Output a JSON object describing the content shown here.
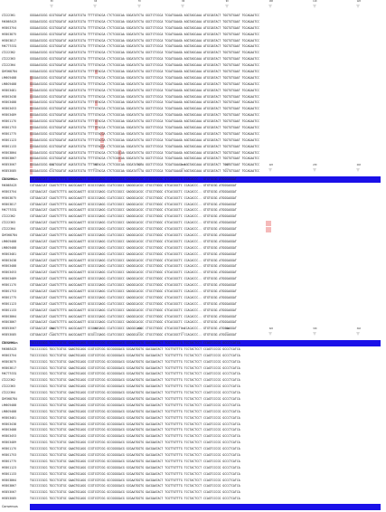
{
  "figure": {
    "consensus_label": "Consensus",
    "blocks": [
      {
        "ticks": [
          "50",
          "60",
          "70",
          "80",
          "90",
          "100",
          "110",
          "120"
        ],
        "labels": [
          "LT222361",
          "MK665425",
          "HE803704",
          "HE803875",
          "HE803817",
          "MK775331",
          "LT222362",
          "LT222363",
          "LT222364",
          "DM368784",
          "LM605488",
          "LM805488",
          "HE803481",
          "HE803438",
          "HE803488",
          "HE803453",
          "HE803489",
          "HE801170",
          "HE801753",
          "HE801775",
          "HE801123",
          "HE801133",
          "HE803864",
          "HE803867",
          "HE853067",
          "HE853085"
        ],
        "seqs": [
          "GGGAACGCGG GCGTGGATAT AGATATCGTA TTTTGTACGA CTCTCGGCAA GGGATATCTA GGCTCTCGCA TCGATGAAGA AGGTAGCAAA ATGCGATACT TGGTGTGAAT TGCAGAATCC",
          "GGGAACGCGG GCGTGGATAT AGATATCGTA TTTTGTACGA CTCTCGGCAA GGGATATCTA GGCTCTCGCA TCGATGAAGA AGGTAGCAAA ATGCGATACT TGGTGTGAAT TGCAGAATCC",
          "GGGAACGCGG GCGTGGATAT AGATATCGTA TTTTGTACGA CTCTCGGCAA GGGATATCTA GGCTCTCGCA TCGATGAAGA AGGTAGCAAA ATGCGATACT TGGTGTGAAT TGCAGAATCC",
          "GGGAACGCGG GCGTGGATAT AGATATCGTA TTTTGTACGA CTCTCGGCAA GGGATATCTA GGCTCTCGCA TCGATGAAGA AGGTAGCAAA ATGCGATACT TGGTGTGAAT TGCAGAATCC",
          "GGGAACGCGG GCGTGGATAT AGATATCGTA TTTTGTACGA CTCTCGGCAA GGGATATCTA GGCTCTCGCA TCGATGAAGA AGGTAGCAAA ATGCGATACT TGGTGTGAAT TGCAGAATCC",
          "GGGAACGCGG GCGTGGATAT AGATATCGTA TTTTGTACGA CTCTCGGCAA GGGATATCTA GGCTCTCGCA TCGATGAAGA AGGTAGCAAA ATGCGATACT TGGTGTGAAT TGCAGAATCC",
          "GGGAACGCGG GCGTGGATAT AGATATCGTA TTTTGTACGA CTCTCGGCAA GGGATATCTA GGCTCTCGCA TCGATGAAGA AGGTAGCAAA ATGCGATACT TGGTGTGAAT TGCAGAATCC",
          "GGGAACGCGG GCGTGGATAT AGATATCGTA TTTTGTACGA CTCTCGGCAA GGGATATCTA GGCTCTCGCA TCGATGAAGA AGGTAGCAAA ATGCGATACT TGGTGTGAAT TGCAGAATCC",
          "GGGAACGCGG GCGTGGATAT AGATATCGTA TTTTGTACGA CTCTCGGCAA GGGATATCTA GGCTCTCGCA TCGATGAAGA AGGTAGCAAA ATGCGATACT TGGTGTGAAT TGCAGAATCC",
          "GGGAACGCGG GCGTGGATAT AGATATCGTA TTTTGTACGA CTCTCGGCAA GGGATATCTA GGCTCTCGCA TCGATGAAGA AGGTAGCAAA ATGCGATACT TGGTGTGAAT TGCAGAATCC",
          "GGGAACGCGG GCGTGGATAT AGATATCGTA TTTTGTACGA CTCTCGGCAA GGGATATCTA GGCTCTCGCA TCGATGAAGA AGGTAGCAAA ATGCGATACT TGGTGTGAAT TGCAGAATCC",
          "GGGAACGCGG GCGTGGATAT AGATATCGTA TTTTGTACGA CTCTCGGCAA GGGATATCTA GGCTCTCGCA TCGATGAAGA AGGTAGCAAA ATGCGATACT TGGTGTGAAT TGCAGAATCC",
          "GGGAACGCGG GCGTGGATAT AGATATCGTA TTTTGTACGA CTCTCGGCAA GGGATATCTA GGCTCTCGCA TCGATGAAGA AGGTAGCAAA ATGCGATACT TGGTGTGAAT TGCAGAATCC",
          "GGGAACGCGG GCGTGGATAT AGATATCGTA TTTTGTACGA CTCTCGGCAA GGGATATCTA GGCTCTCGCA TCGATGAAGA AGGTAGCAAA ATGCGATACT TGGTGTGAAT TGCAGAATCC",
          "GGGAACGCGG GCGTGGATAT AGATATCGTA TTTTGTACGA CTCTCGGCAA GGGATATCTA GGCTCTCGCA TCGATGAAGA AGGTAGCAAA ATGCGATACT TGGTGTGAAT TGCAGAATCC",
          "GGGAACGCGG GCGTGGATAT AGATATCGTA TTTTGTACGA CTCTCGGCAA GGGATATCTA GGCTCTCGCA TCGATGAAGA AGGTAGCAAA ATGCGATACT TGGTGTGAAT TGCAGAATCC",
          "GGGAACGCGG GCGTGGATAT AGATATCGTA TTTTGTACGA CTCTCGGCAA GGGATATCTA GGCTCTCGCA TCGATGAAGA AGGTAGCAAA ATGCGATACT TGGTGTGAAT TGCAGAATCC",
          "GGGAACGCGG GCGTGGATAT AGATATCGTA TTTTGTACGA CTCTCGGCAA GGGATATCTA GGCTCTCGCA TCGATGAAGA AGGTAGCAAA ATGCGATACT TGGTGTGAAT TGCAGAATCC",
          "GGGAACGCGG GCGTGGATAT AGATATCGTA TTTTGTACGA CTCTCGGCAA GGGATATCTA GGCTCTCGCA TCGATGAAGA AGGTAGCAAA ATGCGATACT TGGTGTGAAT TGCAGAATCC",
          "GGGAACGCGG GCGTGGATAT AGATATCGTA TTTTGTACGA CTCTCGGCAA GGGATATCTA GGCTCTCGCA TCGATGAAGA AGGTAGCAAA ATGCGATACT TGGTGTGAAT TGCAGAATCC",
          "GGGAACGCGG GCGTGGATAT AGATATCGTA TTTTGTACGA CTCTCGGCAA GGGATATCTA GGCTCTCGCA TCGATGAAGA AGGTAGCAAA ATGCGATACT TGGTGTGAAT TGCAGAATCC",
          "GGGAACGCGG GCGTGGATAT AGATATCGTA TTTTGTACGA CTCTCGGCAA GGGATATCTA GGCTCTCGCA TCGATGAAGA AGGTAGCAAA ATGCGATACT TGGTGTGAAT TGCAGAATCC",
          "GGGAACGCGG GCGTGGATAT AGATATCGTA TTTTGTACGA CTCTCGGCAA GGGATATCTA GGCTCTCGCA TCGATGAAGA AGGTAGCAAA ATGCGATACT TGGTGTGAAT TGCAGAATCC",
          "GGGAACGCGG GCGTGGATAT AGATATCGTA TTTTGTACGA CTCTCGGCAA GGGATATCTA GGCTCTCGCA TCGATGAAGA AGGTAGCAAA ATGCGATACT TGGTGTGAAT TGCAGAATCC",
          "GGGAACGCGG GCGTGGATAT AGATATCGTA TTTTGTACGA CTCTCGGCAA GGGATATCTA GGCTCTCGCA TCGATGAAGA AGGTAGCAAA ATGCGATACT TGGTGTGAAT TGCAGAATCC",
          "GGGAACGCGG GCGTGGATAT AGATATCGTA TTTTGTACGA CTCTCGGCAA GGGATATCTA GGCTCTCGCA TCGATGAAGA AGGTAGCAAA ATGCGATACT TGGTGTGAAT TGCAGAATCC"
        ],
        "mismatch_columns": [
          [],
          [],
          [],
          [],
          [],
          [],
          [],
          [],
          [],
          [
            22
          ],
          [
            0
          ],
          [
            0
          ],
          [
            0
          ],
          [
            0
          ],
          [
            0,
            22
          ],
          [
            0
          ],
          [
            0
          ],
          [
            0,
            22
          ],
          [
            0,
            22
          ],
          [
            0,
            24
          ],
          [
            0,
            24
          ],
          [
            0,
            24
          ],
          [
            0,
            30
          ],
          [
            0,
            30
          ],
          [
            0
          ],
          [
            0
          ]
        ]
      },
      {
        "ticks": [
          "170",
          "180",
          "190",
          "200",
          "210",
          "220",
          "230",
          "240"
        ],
        "labels": [
          "LT222361",
          "MK665425",
          "HE803704",
          "HE803875",
          "HE803817",
          "MK775331",
          "LT222362",
          "LT222363",
          "LT222364",
          "DM368784",
          "LM605488",
          "LM805488",
          "HE803481",
          "HE803438",
          "HE803488",
          "HE803453",
          "HE803489",
          "HE801170",
          "HE801753",
          "HE801775",
          "HE801123",
          "HE801133",
          "HE803864",
          "HE803867",
          "HE853067",
          "HE853085"
        ],
        "seqs": [
          "CGTGAACCAT CGAGTCTTTG AACGCAAGTT GCGCCCGAGG CCATCCGGCC GAGGGCACGC CTGCCTGGGC GTCACGGCTC CCACACCC-- GTGTGCGG ATGGGAGGAT",
          "CGTGAACCAT CGAGTCTTTG AACGCAAGTT GCGCCCGAGG CCATCCGGCC GAGGGCACGC CTGCCTGGGC GTCACGGCTC CCACACCC-- GTGTGCGG ATGGGAGGAT",
          "CGTGAACCAT CGAGTCTTTG AACGCAAGTT GCGCCCGAGG CCATCCGGCC GAGGGCACGC CTGCCTGGGC GTCACGGCTC CCACACCC-- GTGTGCGG ATGGGAGGAT",
          "CGTGAACCAT CGAGTCTTTG AACGCAAGTT GCGCCCGAGG CCATCCGGCC GAGGGCACGC CTGCCTGGGC GTCACGGCTC CCACACCC-- GTGTGCGG ATGGGAGGAT",
          "CGTGAACCAT CGAGTCTTTG AACGCAAGTT GCGCCCGAGG CCATCCGGCC GAGGGCACGC CTGCCTGGGC GTCACGGCTC CCACACCC-- GTGTGCGG ATGGGAGGAT",
          "CGTGAACCAT CGAGTCTTTG AACGCAAGTT GCGCCCGAGG CCATCCGGCC GAGGGCACGC CTGCCTGGGC GTCACGGCTC CCACACCC-- GTGTGCGG ATGGGAGGAT",
          "CGTGAACCAT CGAGTCTTTG AACGCAAGTT GCGCCCGAGG CCATCCGGCC GAGGGCACGC CTGCCTGGGC GTCACGGCTC CCACACCC-- GTGTGCGG ATGGGAGGAT",
          "CGTGAACCAT CGAGTCTTTG AACGCAAGTT GCGCCCGAGG CCATCCGGCC GAGGGCACGC CTGCCTGGGC GTCACGGCTC CCACACCC-- GTGTGCGG ATGGGAGGAT",
          "CGTGAACCAT CGAGTCTTTG AACGCAAGTT GCGCCCGAGG CCATCCGGCC GAGGGCACGC CTGCCTGGGC GTCACGGCTC CCACACCC-- GTGTGCGG ATGGGAGGAT",
          "CGTGAACCAT CGAGTCTTTG AACGCAAGTT GCGCCCGAGG CCATCCGGCC GAGGGCACGC CTGCCTGGGC GTCACGGCTC CCACACCC-- GTGTGCGG ATGGGAGGAT",
          "CGTGAACCAT CGAGTCTTTG AACGCAAGTT GCGCCCGAGG CCATCCGGCC GAGGGCACGC CTGCCTGGGC GTCACGGCTC CCACACCC-- GTGTGCGG ATGGGAGGAT",
          "CGTGAACCAT CGAGTCTTTG AACGCAAGTT GCGCCCGAGG CCATCCGGCC GAGGGCACGC CTGCCTGGGC GTCACGGCTC CCACACCC-- GTGTGCGG ATGGGAGGAT",
          "CGTGAACCAT CGAGTCTTTG AACGCAAGTT GCGCCCGAGG CCATCCGGCC GAGGGCACGC CTGCCTGGGC GTCACGGCTC CCACACCC-- GTGTGCGG ATGGGAGGAT",
          "CGTGAACCAT CGAGTCTTTG AACGCAAGTT GCGCCCGAGG CCATCCGGCC GAGGGCACGC CTGCCTGGGC GTCACGGCTC CCACACCC-- GTGTGCGG ATGGGAGGAT",
          "CGTGAACCAT CGAGTCTTTG AACGCAAGTT GCGCCCGAGG CCATCCGGCC GAGGGCACGC CTGCCTGGGC GTCACGGCTC CCACACCC-- GTGTGCGG ATGGGAGGAT",
          "CGTGAACCAT CGAGTCTTTG AACGCAAGTT GCGCCCGAGG CCATCCGGCC GAGGGCACGC CTGCCTGGGC GTCACGGCTC CCACACCC-- GTGTGCGG ATGGGAGGAT",
          "CGTGAACCAT CGAGTCTTTG AACGCAAGTT GCGCCCGAGG CCATCCGGCC GAGGGCACGC CTGCCTGGGC GTCACGGCTC CCACACCC-- GTGTGCGG ATGGGAGGAT",
          "CGTGAACCAT CGAGTCTTTG AACGCAAGTT GCGCCCGAGG CCATCCGGCC GAGGGCACGC CTGCCTGGGC GTCACGGCTC CCACACCC-- GTGTGCGG ATGGGAGGAT",
          "CGTGAACCAT CGAGTCTTTG AACGCAAGTT GCGCCCGAGG CCATCCGGCC GAGGGCACGC CTGCCTGGGC GTCACGGCTC CCACACCC-- GTGTGCGG ATGGGAGGAT",
          "CGTGAACCAT CGAGTCTTTG AACGCAAGTT GCGCCCGAGG CCATCCGGCC GAGGGCACGC CTGCCTGGGC GTCACGGCTC CCACACCC-- GTGTGCGG ATGGGAGGAT",
          "CGTGAACCAT CGAGTCTTTG AACGCAAGTT GCGCCCGAGG CCATCCGGCC GAGGGCACGC CTGCCTGGGC GTCACGGCTC CCACACCC-- GTGTGCGG ATGGGAGGAT",
          "CGTGAACCAT CGAGTCTTTG AACGCAAGTT GCGCCCGAGG CCATCCGGCC GAGGGCACGC CTGCCTGGGC GTCACGGCTC CCACACCC-- GTGTGCGG ATGGGAGGAT",
          "CGTGAACCAT CGAGTCTTTG AACGCAAGTT GCGCCCGAGG CCATCCGGCC GAGGGCACGC CTGCCTGGGC GTCACGGCTC CCACACCC-- GTGTGCGG ATGGGAGGAT",
          "CGTGAACCAT CGAGTCTTTG AACGCAAGTT GCGCCCGAGG CCATCCGGCC GAGGGCACGC CTGCCTGGGC GTCACGGCTC CCACACCC-- GTGTGCGG ATGGGAGGAT",
          "CGTGAACCAT CGAGTCTTTG AACGCAAGTT GCGCCCGAGG CCATCCGGCC GAGGGCACGC CTGCCTGGGC GTCACGGCTC CCACACCC-- GTGTGCGG ATGGGAGGAT",
          "CGTGAACCAT CGAGTCTTTG AACGCAAGTT GCGCCCGAGG CCATCCGGCC GAGGGCACGC CTGCCTGGGC GTCACGGCTC CCACACCC-- GTGTGCGG ATGGGAGGAT"
        ],
        "mismatch_columns": [
          [],
          [],
          [],
          [],
          [],
          [],
          [],
          [
            80,
            81
          ],
          [
            80,
            81
          ],
          [],
          [],
          [],
          [],
          [],
          [],
          [],
          [],
          [],
          [],
          [],
          [],
          [],
          [],
          [],
          [],
          []
        ]
      },
      {
        "ticks": [
          "270",
          "280",
          "290",
          "300",
          "310",
          "320",
          "330",
          "340"
        ],
        "labels": [
          "LT222361",
          "MK665425",
          "HE803704",
          "HE803875",
          "HE803817",
          "MK775331",
          "LT222362",
          "LT222363",
          "LT222364",
          "DM368784",
          "LM605488",
          "LM805488",
          "HE803481",
          "HE803438",
          "HE803488",
          "HE803453",
          "HE803489",
          "HE801170",
          "HE801753",
          "HE801775",
          "HE801123",
          "HE801133",
          "HE803864",
          "HE803867",
          "HE853067",
          "HE853085"
        ],
        "seqs": [
          "TGCCCCCGCG TGCCTCGTGC GAAGTGCAGG CCGTCGTCGG GCCGGGGACG GCGAATGGTG GACGAATACT TCGTTGTTTG TCCTACTCCT CCAGTCCCCG GCCCTCATCA",
          "TGCCCCCGCG TGCCTCGTGC GAAGTGCAGG CCGTCGTCGG GCCGGGGACG GCGAATGGTG GACGAATACT TCGTTGTTTG TCCTACTCCT CCAGTCCCCG GCCCTCATCA",
          "TGCCCCCGCG TGCCTCGTGC GAAGTGCAGG CCGTCGTCGG GCCGGGGACG GCGAATGGTG GACGAATACT TCGTTGTTTG TCCTACTCCT CCAGTCCCCG GCCCTCATCA",
          "TGCCCCCGCG TGCCTCGTGC GAAGTGCAGG CCGTCGTCGG GCCGGGGACG GCGAATGGTG GACGAATACT TCGTTGTTTG TCCTACTCCT CCAGTCCCCG GCCCTCATCA",
          "TGCCCCCGCG TGCCTCGTGC GAAGTGCAGG CCGTCGTCGG GCCGGGGACG GCGAATGGTG GACGAATACT TCGTTGTTTG TCCTACTCCT CCAGTCCCCG GCCCTCATCA",
          "TGCCCCCGCG TGCCTCGTGC GAAGTGCAGG CCGTCGTCGG GCCGGGGACG GCGAATGGTG GACGAATACT TCGTTGTTTG TCCTACTCCT CCAGTCCCCG GCCCTCATCA",
          "TGCCCCCGCG TGCCTCGTGC GAAGTGCAGG CCGTCGTCGG GCCGGGGACG GCGAATGGTG GACGAATACT TCGTTGTTTG TCCTACTCCT CCAGTCCCCG GCCCTCATCA",
          "TGCCCCCGCG TGCCTCGTGC GAAGTGCAGG CCGTCGTCGG GCCGGGGACG GCGAATGGTG GACGAATACT TCGTTGTTTG TCCTACTCCT CCAGTCCCCG GCCCTCATCA",
          "TGCCCCCGCG TGCCTCGTGC GAAGTGCAGG CCGTCGTCGG GCCGGGGACG GCGAATGGTG GACGAATACT TCGTTGTTTG TCCTACTCCT CCAGTCCCCG GCCCTCATCA",
          "TGCCCCCGCG TGCCTCGTGC GAAGTGCAGG CCGTCGTCGG GCCGGGGACG GCGAATGGTG GACGAATACT TCGTTGTTTG TCCTACTCCT CCAGTCCCCG GCCCTCATCA",
          "TGCCCCCGCG TGCCTCGTGC GAAGTGCAGG CCGTCGTCGG GCCGGGGACG GCGAATGGTG GACGAATACT TCGTTGTTTG TCCTACTCCT CCAGTCCCCG GCCCTCATCA",
          "TGCCCCCGCG TGCCTCGTGC GAAGTGCAGG CCGTCGTCGG GCCGGGGACG GCGAATGGTG GACGAATACT TCGTTGTTTG TCCTACTCCT CCAGTCCCCG GCCCTCATCA",
          "TGCCCCCGCG TGCCTCGTGC GAAGTGCAGG CCGTCGTCGG GCCGGGGACG GCGAATGGTG GACGAATACT TCGTTGTTTG TCCTACTCCT CCAGTCCCCG GCCCTCATCA",
          "TGCCCCCGCG TGCCTCGTGC GAAGTGCAGG CCGTCGTCGG GCCGGGGACG GCGAATGGTG GACGAATACT TCGTTGTTTG TCCTACTCCT CCAGTCCCCG GCCCTCATCA",
          "TGCCCCCGCG TGCCTCGTGC GAAGTGCAGG CCGTCGTCGG GCCGGGGACG GCGAATGGTG GACGAATACT TCGTTGTTTG TCCTACTCCT CCAGTCCCCG GCCCTCATCA",
          "TGCCCCCGCG TGCCTCGTGC GAAGTGCAGG CCGTCGTCGG GCCGGGGACG GCGAATGGTG GACGAATACT TCGTTGTTTG TCCTACTCCT CCAGTCCCCG GCCCTCATCA",
          "TGCCCCCGCG TGCCTCGTGC GAAGTGCAGG CCGTCGTCGG GCCGGGGACG GCGAATGGTG GACGAATACT TCGTTGTTTG TCCTACTCCT CCAGTCCCCG GCCCTCATCA",
          "TGCCCCCGCG TGCCTCGTGC GAAGTGCAGG CCGTCGTCGG GCCGGGGACG GCGAATGGTG GACGAATACT TCGTTGTTTG TCCTACTCCT CCAGTCCCCG GCCCTCATCA",
          "TGCCCCCGCG TGCCTCGTGC GAAGTGCAGG CCGTCGTCGG GCCGGGGACG GCGAATGGTG GACGAATACT TCGTTGTTTG TCCTACTCCT CCAGTCCCCG GCCCTCATCA",
          "TGCCCCCGCG TGCCTCGTGC GAAGTGCAGG CCGTCGTCGG GCCGGGGACG GCGAATGGTG GACGAATACT TCGTTGTTTG TCCTACTCCT CCAGTCCCCG GCCCTCATCA",
          "TGCCCCCGCG TGCCTCGTGC GAAGTGCAGG CCGTCGTCGG GCCGGGGACG GCGAATGGTG GACGAATACT TCGTTGTTTG TCCTACTCCT CCAGTCCCCG GCCCTCATCA",
          "TGCCCCCGCG TGCCTCGTGC GAAGTGCAGG CCGTCGTCGG GCCGGGGACG GCGAATGGTG GACGAATACT TCGTTGTTTG TCCTACTCCT CCAGTCCCCG GCCCTCATCA",
          "TGCCCCCGCG TGCCTCGTGC GAAGTGCAGG CCGTCGTCGG GCCGGGGACG GCGAATGGTG GACGAATACT TCGTTGTTTG TCCTACTCCT CCAGTCCCCG GCCCTCATCA",
          "TGCCCCCGCG TGCCTCGTGC GAAGTGCAGG CCGTCGTCGG GCCGGGGACG GCGAATGGTG GACGAATACT TCGTTGTTTG TCCTACTCCT CCAGTCCCCG GCCCTCATCA",
          "TGCCCCCGCG TGCCTCGTGC GAAGTGCAGG CCGTCGTCGG GCCGGGGACG GCGAATGGTG GACGAATACT TCGTTGTTTG TCCTACTCCT CCAGTCCCCG GCCCTCATCA",
          "TGCCCCCGCG TGCCTCGTGC GAAGTGCAGG CCGTCGTCGG GCCGGGGACG GCGAATGGTG GACGAATACT TCGTTGTTTG TCCTACTCCT CCAGTCCCCG GCCCTCATCA"
        ],
        "mismatch_columns": [
          [],
          [],
          [],
          [],
          [],
          [],
          [],
          [],
          [],
          [],
          [],
          [],
          [],
          [],
          [],
          [],
          [],
          [],
          [],
          [],
          [],
          [],
          [],
          [],
          [],
          []
        ]
      }
    ]
  }
}
